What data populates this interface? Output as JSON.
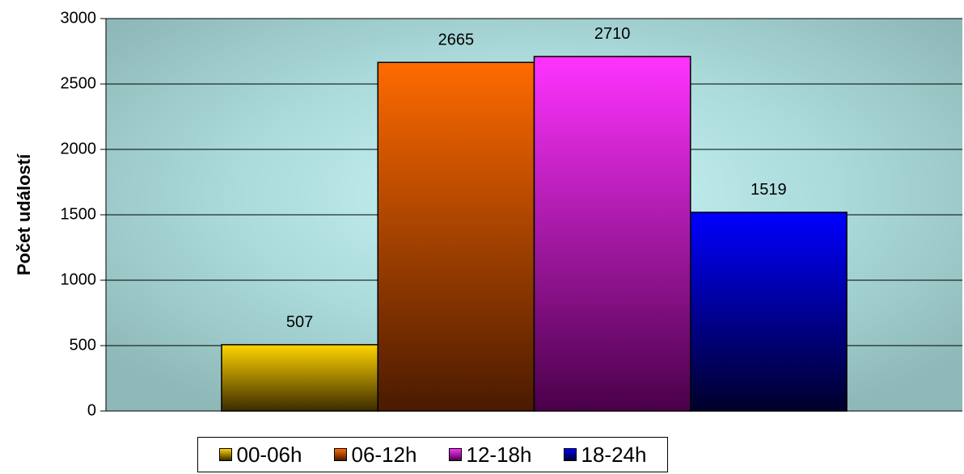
{
  "chart_data": {
    "type": "bar",
    "title": "",
    "xlabel": "",
    "ylabel": "Počet událostí",
    "ylim": [
      0,
      3000
    ],
    "yticks": [
      0,
      500,
      1000,
      1500,
      2000,
      2500,
      3000
    ],
    "grid": true,
    "legend_position": "bottom",
    "series": [
      {
        "name": "00-06h",
        "value": 507,
        "label": "507",
        "color_top": "#ffd400",
        "color_bottom": "#3b2a00"
      },
      {
        "name": "06-12h",
        "value": 2665,
        "label": "2665",
        "color_top": "#ff6a00",
        "color_bottom": "#4a1a00"
      },
      {
        "name": "12-18h",
        "value": 2710,
        "label": "2710",
        "color_top": "#ff33ff",
        "color_bottom": "#4a004a"
      },
      {
        "name": "18-24h",
        "value": 1519,
        "label": "1519",
        "color_top": "#0000ff",
        "color_bottom": "#00002a"
      }
    ]
  }
}
